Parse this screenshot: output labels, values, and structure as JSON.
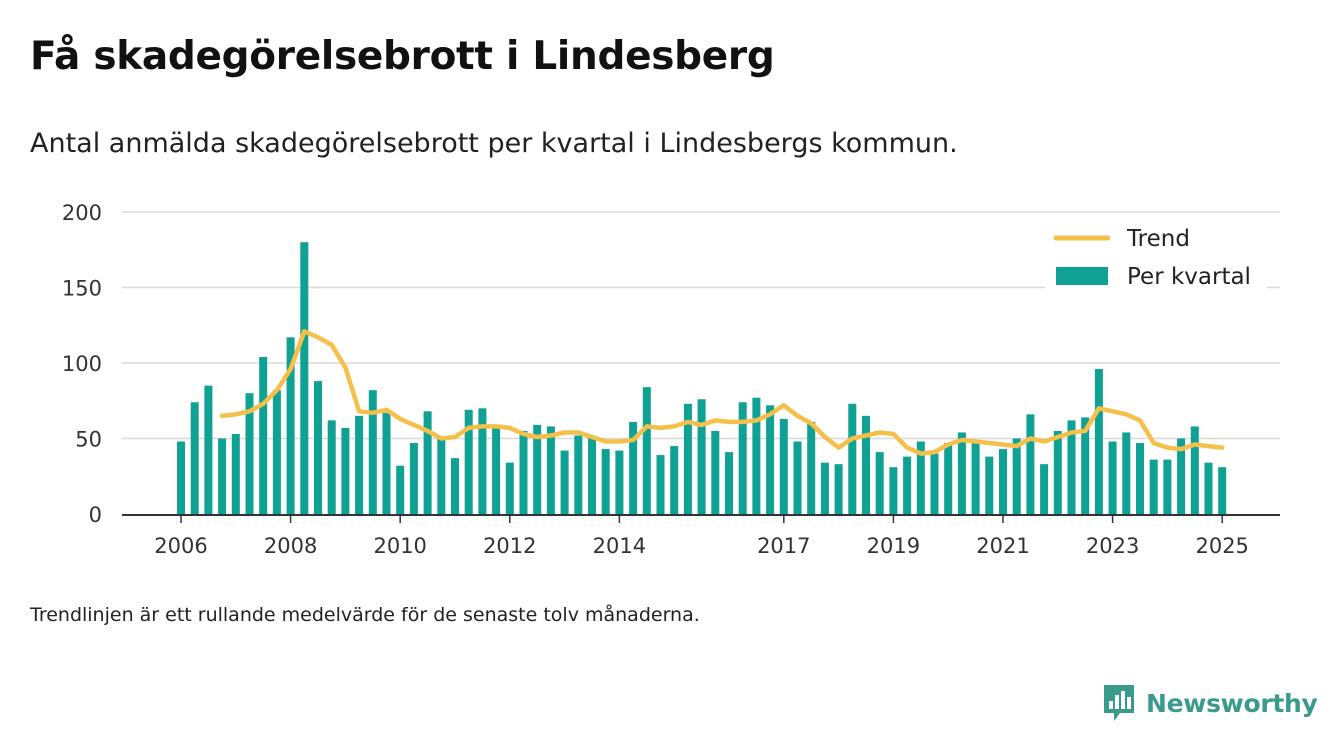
{
  "title": "Få skadegörelsebrott i Lindesberg",
  "subtitle": "Antal anmälda skadegörelsebrott per kvartal i Lindesbergs kommun.",
  "footnote": "Trendlinjen är ett rullande medelvärde för de senaste tolv månaderna.",
  "brand": {
    "name": "Newsworthy",
    "icon": "newsworthy-logo-icon"
  },
  "colors": {
    "bar": "#0fa193",
    "trend": "#f5c04a",
    "grid": "#d9d9d9",
    "axis": "#333333"
  },
  "chart_data": {
    "type": "bar",
    "title": "",
    "xlabel": "",
    "ylabel": "",
    "ylim": [
      0,
      200
    ],
    "yticks": [
      "0",
      "50",
      "100",
      "150",
      "200"
    ],
    "ytick_values": [
      0,
      50,
      100,
      150,
      200
    ],
    "xtick_labels": [
      "2006",
      "2008",
      "2010",
      "2012",
      "2014",
      "2017",
      "2019",
      "2021",
      "2023",
      "2025"
    ],
    "xtick_quarter_index": [
      0,
      8,
      16,
      24,
      32,
      44,
      52,
      60,
      68,
      76
    ],
    "grid": true,
    "legend_position": "top-right",
    "categories": [
      "2006 Q1",
      "2006 Q2",
      "2006 Q3",
      "2006 Q4",
      "2007 Q1",
      "2007 Q2",
      "2007 Q3",
      "2007 Q4",
      "2008 Q1",
      "2008 Q2",
      "2008 Q3",
      "2008 Q4",
      "2009 Q1",
      "2009 Q2",
      "2009 Q3",
      "2009 Q4",
      "2010 Q1",
      "2010 Q2",
      "2010 Q3",
      "2010 Q4",
      "2011 Q1",
      "2011 Q2",
      "2011 Q3",
      "2011 Q4",
      "2012 Q1",
      "2012 Q2",
      "2012 Q3",
      "2012 Q4",
      "2013 Q1",
      "2013 Q2",
      "2013 Q3",
      "2013 Q4",
      "2014 Q1",
      "2014 Q2",
      "2014 Q3",
      "2014 Q4",
      "2015 Q1",
      "2015 Q2",
      "2015 Q3",
      "2015 Q4",
      "2016 Q1",
      "2016 Q2",
      "2016 Q3",
      "2016 Q4",
      "2017 Q1",
      "2017 Q2",
      "2017 Q3",
      "2017 Q4",
      "2018 Q1",
      "2018 Q2",
      "2018 Q3",
      "2018 Q4",
      "2019 Q1",
      "2019 Q2",
      "2019 Q3",
      "2019 Q4",
      "2020 Q1",
      "2020 Q2",
      "2020 Q3",
      "2020 Q4",
      "2021 Q1",
      "2021 Q2",
      "2021 Q3",
      "2021 Q4",
      "2022 Q1",
      "2022 Q2",
      "2022 Q3",
      "2022 Q4",
      "2023 Q1",
      "2023 Q2",
      "2023 Q3",
      "2023 Q4",
      "2024 Q1",
      "2024 Q2",
      "2024 Q3",
      "2024 Q4",
      "2025 Q1",
      "2025 Q2"
    ],
    "series": [
      {
        "name": "Per kvartal",
        "type": "bar",
        "values": [
          48,
          74,
          85,
          50,
          53,
          80,
          104,
          82,
          117,
          180,
          88,
          62,
          57,
          65,
          82,
          67,
          32,
          47,
          68,
          50,
          37,
          69,
          70,
          57,
          34,
          55,
          59,
          58,
          42,
          52,
          52,
          43,
          42,
          61,
          84,
          39,
          45,
          73,
          76,
          55,
          41,
          74,
          77,
          72,
          63,
          48,
          61,
          34,
          33,
          73,
          65,
          41,
          31,
          38,
          48,
          40,
          47,
          54,
          49,
          38,
          43,
          50,
          66,
          33,
          55,
          62,
          64,
          96,
          48,
          54,
          47,
          36,
          36,
          50,
          58,
          34,
          31,
          null
        ]
      },
      {
        "name": "Trend",
        "type": "line",
        "values": [
          null,
          null,
          null,
          65,
          66,
          68,
          73,
          82,
          96,
          121,
          117,
          112,
          97,
          68,
          67,
          69,
          63,
          59,
          55,
          50,
          51,
          57,
          58,
          58,
          57,
          53,
          51,
          52,
          54,
          54,
          51,
          48,
          48,
          49,
          58,
          57,
          58,
          61,
          59,
          62,
          61,
          61,
          62,
          66,
          72,
          65,
          60,
          51,
          44,
          50,
          52,
          54,
          53,
          44,
          40,
          41,
          46,
          49,
          48,
          47,
          46,
          45,
          50,
          48,
          51,
          54,
          55,
          70,
          68,
          66,
          62,
          47,
          44,
          43,
          46,
          45,
          44,
          null
        ]
      }
    ]
  }
}
